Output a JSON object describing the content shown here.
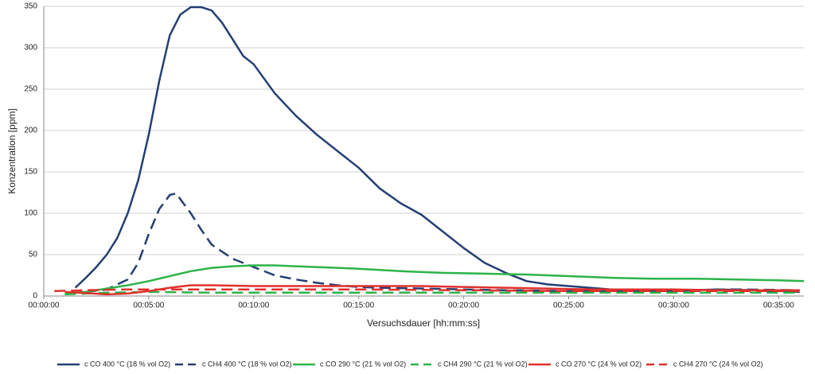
{
  "chart_data": {
    "type": "line",
    "x_label": "Versuchsdauer [hh:mm:ss]",
    "y_label": "Konzentration [ppm]",
    "xlim": [
      0,
      36.2
    ],
    "xticks": [
      {
        "value": 0,
        "label": "00:00:00"
      },
      {
        "value": 5,
        "label": "00:05:00"
      },
      {
        "value": 10,
        "label": "00:10:00"
      },
      {
        "value": 15,
        "label": "00:15:00"
      },
      {
        "value": 20,
        "label": "00:20:00"
      },
      {
        "value": 25,
        "label": "00:25:00"
      },
      {
        "value": 30,
        "label": "00:30:00"
      },
      {
        "value": 35,
        "label": "00:35:00"
      }
    ],
    "ylim": [
      0,
      350
    ],
    "yticks": [
      0,
      50,
      100,
      150,
      200,
      250,
      300,
      350
    ],
    "grid": true,
    "legend": "bottom",
    "series": [
      {
        "name": "c CO 400 °C (18 % vol O2)",
        "color": "#243f73",
        "style": "solid",
        "x": [
          1.5,
          2,
          2.5,
          3,
          3.5,
          4,
          4.5,
          5,
          5.5,
          6,
          6.5,
          7,
          7.5,
          8,
          8.5,
          9,
          9.5,
          10,
          11,
          12,
          13,
          14,
          15,
          16,
          17,
          18,
          19,
          20,
          21,
          22,
          23,
          24,
          25,
          26,
          27,
          28,
          30,
          32,
          34,
          36
        ],
        "values": [
          10,
          22,
          35,
          50,
          70,
          100,
          140,
          195,
          260,
          315,
          340,
          349,
          349,
          345,
          330,
          310,
          290,
          280,
          245,
          218,
          195,
          175,
          155,
          130,
          112,
          98,
          78,
          58,
          40,
          28,
          18,
          14,
          12,
          10,
          8,
          7,
          6,
          8,
          7,
          5
        ]
      },
      {
        "name": "c CH4 400 °C (18 % vol O2)",
        "color": "#243f73",
        "style": "dashed",
        "x": [
          2,
          3,
          4,
          4.5,
          5,
          5.5,
          6,
          6.3,
          7,
          7.5,
          8,
          9,
          10,
          11,
          12,
          13,
          14,
          15,
          16,
          18,
          20,
          22,
          25,
          28,
          30,
          33,
          36
        ],
        "values": [
          5,
          8,
          20,
          40,
          75,
          105,
          122,
          124,
          100,
          80,
          62,
          45,
          35,
          25,
          20,
          16,
          13,
          11,
          10,
          9,
          8,
          7,
          6,
          6,
          7,
          8,
          7
        ]
      },
      {
        "name": "c CO 290 °C (21 % vol O2)",
        "color": "#2db34a",
        "style": "solid",
        "x": [
          1,
          2,
          3,
          4,
          5,
          6,
          7,
          8,
          9,
          10,
          11,
          12,
          13,
          14,
          15,
          17,
          19,
          21,
          23,
          25,
          27,
          29,
          31,
          33,
          35,
          36.2
        ],
        "values": [
          3,
          5,
          9,
          13,
          18,
          24,
          30,
          34,
          36,
          37,
          37,
          36,
          35,
          34,
          33,
          30,
          28,
          27,
          26,
          24,
          22,
          21,
          21,
          20,
          19,
          18
        ]
      },
      {
        "name": "c CH4 290 °C (21 % vol O2)",
        "color": "#2db34a",
        "style": "dashed",
        "x": [
          1,
          3,
          5,
          8,
          10,
          15,
          20,
          25,
          30,
          36
        ],
        "values": [
          2,
          4,
          5,
          4,
          4,
          4,
          4,
          4,
          4,
          4
        ]
      },
      {
        "name": "c CO 270 °C (24 % vol O2)",
        "color": "#e0312c",
        "style": "solid",
        "x": [
          1,
          3,
          4,
          5,
          6,
          7,
          8,
          10,
          12,
          14,
          16,
          18,
          20,
          22,
          24,
          26,
          28,
          30,
          32,
          34,
          36
        ],
        "values": [
          5,
          2,
          3,
          6,
          10,
          13,
          13,
          12,
          12,
          12,
          12,
          12,
          11,
          10,
          9,
          8,
          8,
          8,
          7,
          7,
          7
        ]
      },
      {
        "name": "c CH4 270 °C (24 % vol O2)",
        "color": "#e0312c",
        "style": "dashed",
        "x": [
          0.5,
          2,
          4,
          6,
          8,
          10,
          15,
          20,
          25,
          30,
          36
        ],
        "values": [
          6,
          7,
          8,
          8,
          8,
          8,
          8,
          7,
          6,
          6,
          6
        ]
      }
    ]
  }
}
